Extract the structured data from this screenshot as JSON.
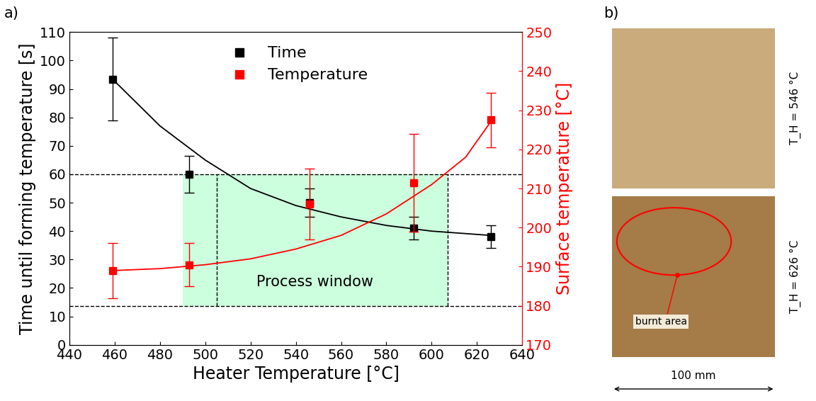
{
  "panels": {
    "a": "a)",
    "b": "b)"
  },
  "chart_data": {
    "type": "scatter",
    "x_label": "Heater Temperature [°C]",
    "y_label": "Time until forming temperature [s]",
    "y2_label": "Surface temperature [°C]",
    "x": [
      459,
      493,
      546,
      592,
      626
    ],
    "series": [
      {
        "name": "Time",
        "color": "#000000",
        "marker": "square",
        "values": [
          93.5,
          60,
          50,
          41,
          38
        ],
        "errors": [
          14.5,
          6.5,
          5,
          4,
          4
        ],
        "fit_x": [
          459,
          480,
          500,
          520,
          540,
          560,
          580,
          600,
          626
        ],
        "fit_values": [
          93.5,
          77,
          65,
          55,
          49,
          45,
          42,
          40,
          38.5
        ]
      },
      {
        "name": "Temperature",
        "color": "#ff0000",
        "marker": "square",
        "axis": "y2",
        "values": [
          189,
          190.5,
          206,
          211.5,
          227.5
        ],
        "errors": [
          7,
          5.5,
          9,
          12.5,
          7
        ],
        "fit_x": [
          459,
          480,
          500,
          520,
          540,
          560,
          580,
          600,
          615,
          626
        ],
        "fit_values": [
          189,
          189.5,
          190.5,
          192,
          194.5,
          198,
          203.5,
          211,
          218,
          227
        ]
      }
    ],
    "xlim": [
      440,
      640
    ],
    "xticks": [
      440,
      460,
      480,
      500,
      520,
      540,
      560,
      580,
      600,
      620,
      640
    ],
    "ylim": [
      0,
      110
    ],
    "yticks": [
      0,
      10,
      20,
      30,
      40,
      50,
      60,
      70,
      80,
      90,
      100,
      110
    ],
    "y2lim": [
      170,
      250
    ],
    "y2ticks": [
      170,
      180,
      190,
      200,
      210,
      220,
      230,
      240,
      250
    ],
    "legend": "upper center",
    "process_window": {
      "label": "Process window",
      "color": "#ccffdd",
      "x": [
        490,
        607
      ],
      "time_limit": 60,
      "temperature_limit": 180,
      "x_lines": [
        505,
        607
      ]
    }
  },
  "photos": {
    "top": {
      "label": "T_H = 546 °C",
      "color": "#c9ab7c"
    },
    "bottom": {
      "label": "T_H = 626 °C",
      "color": "#a57b48",
      "annotation": "burnt area"
    },
    "scale": "100 mm"
  }
}
